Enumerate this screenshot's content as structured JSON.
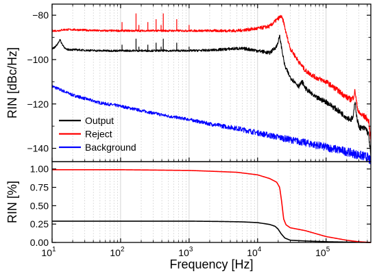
{
  "chart_data": [
    {
      "type": "line",
      "panel": "top",
      "ylabel": "RIN [dBc/Hz]",
      "xscale": "log",
      "xlim": [
        10,
        450000
      ],
      "ylim": [
        -146,
        -75
      ],
      "yticks": [
        -80,
        -100,
        -120,
        -140
      ],
      "ytick_labels": [
        "−80",
        "−100",
        "−120",
        "−140"
      ],
      "grid": "vertical (major and minor, x only)",
      "legend": "lower-left",
      "series": [
        {
          "name": "Output",
          "color": "#000000",
          "x": [
            10,
            11,
            12,
            13,
            14,
            16,
            20,
            30,
            50,
            100,
            200,
            500,
            1000,
            2000,
            5000,
            7000,
            10000,
            15000,
            19000,
            21000,
            22500,
            25000,
            30000,
            40000,
            45000,
            50000,
            70000,
            100000,
            150000,
            200000,
            230000,
            250000,
            265000,
            280000,
            300000,
            330000,
            380000,
            420000,
            450000
          ],
          "y": [
            -95,
            -94.5,
            -93,
            -91,
            -93,
            -95.5,
            -95.5,
            -95.8,
            -96,
            -96,
            -96,
            -96,
            -96,
            -95.8,
            -95,
            -95.2,
            -96,
            -97,
            -94,
            -89.5,
            -95,
            -103,
            -108,
            -112,
            -110,
            -113,
            -117,
            -119,
            -123,
            -126,
            -127,
            -126,
            -118,
            -126,
            -130,
            -131,
            -131,
            -134,
            -144
          ]
        },
        {
          "name": "Reject",
          "color": "#ff0000",
          "x": [
            10,
            12,
            15,
            20,
            50,
            100,
            200,
            500,
            1000,
            2000,
            5000,
            10000,
            15000,
            20000,
            22000,
            24000,
            26000,
            30000,
            40000,
            50000,
            70000,
            100000,
            150000,
            200000,
            230000,
            250000,
            265000,
            280000,
            300000,
            330000,
            380000,
            420000,
            450000
          ],
          "y": [
            -87,
            -87,
            -86.5,
            -86.5,
            -87,
            -87,
            -87,
            -87,
            -87,
            -87,
            -87,
            -86,
            -85,
            -81.5,
            -80.5,
            -83,
            -88,
            -95,
            -101,
            -105,
            -108,
            -110,
            -114,
            -117,
            -118,
            -117,
            -114,
            -120,
            -124,
            -125,
            -126,
            -128,
            -137
          ]
        },
        {
          "name": "Background",
          "color": "#0000ff",
          "x": [
            10,
            20,
            50,
            100,
            200,
            500,
            1000,
            2000,
            5000,
            10000,
            20000,
            50000,
            100000,
            200000,
            300000,
            400000,
            450000
          ],
          "y": [
            -112,
            -116,
            -119.5,
            -121,
            -123,
            -125.5,
            -127,
            -129,
            -131,
            -133,
            -135,
            -137.5,
            -139.5,
            -141.5,
            -143,
            -144,
            -146
          ]
        }
      ]
    },
    {
      "type": "line",
      "panel": "bottom",
      "xlabel": "Frequency [Hz]",
      "ylabel": "RIN [%]",
      "xscale": "log",
      "xlim": [
        10,
        450000
      ],
      "ylim": [
        0,
        1.1
      ],
      "yticks": [
        0,
        0.25,
        0.5,
        0.75,
        1.0
      ],
      "ytick_labels": [
        "0.00",
        "0.25",
        "0.50",
        "0.75",
        "1.00"
      ],
      "xticks": [
        10,
        100,
        1000,
        10000,
        100000
      ],
      "grid": "vertical (major and minor, x only)",
      "series": [
        {
          "color": "#000000",
          "x": [
            10,
            100,
            1000,
            3000,
            6000,
            10000,
            15000,
            18000,
            20000,
            22000,
            25000,
            30000,
            50000,
            100000,
            200000,
            450000
          ],
          "y": [
            0.29,
            0.29,
            0.29,
            0.285,
            0.28,
            0.27,
            0.245,
            0.22,
            0.18,
            0.12,
            0.06,
            0.03,
            0.02,
            0.01,
            0.005,
            0.0
          ]
        },
        {
          "color": "#ff0000",
          "x": [
            10,
            100,
            1000,
            2000,
            5000,
            10000,
            15000,
            19000,
            21000,
            22500,
            24000,
            26000,
            30000,
            50000,
            100000,
            200000,
            300000,
            450000
          ],
          "y": [
            0.99,
            0.99,
            0.98,
            0.97,
            0.955,
            0.92,
            0.87,
            0.82,
            0.75,
            0.55,
            0.32,
            0.24,
            0.2,
            0.16,
            0.08,
            0.03,
            0.01,
            0.0
          ]
        }
      ]
    }
  ],
  "tick_labels": {
    "x": [
      {
        "base": "10",
        "exp": "1"
      },
      {
        "base": "10",
        "exp": "2"
      },
      {
        "base": "10",
        "exp": "3"
      },
      {
        "base": "10",
        "exp": "4"
      },
      {
        "base": "10",
        "exp": "5"
      }
    ]
  }
}
